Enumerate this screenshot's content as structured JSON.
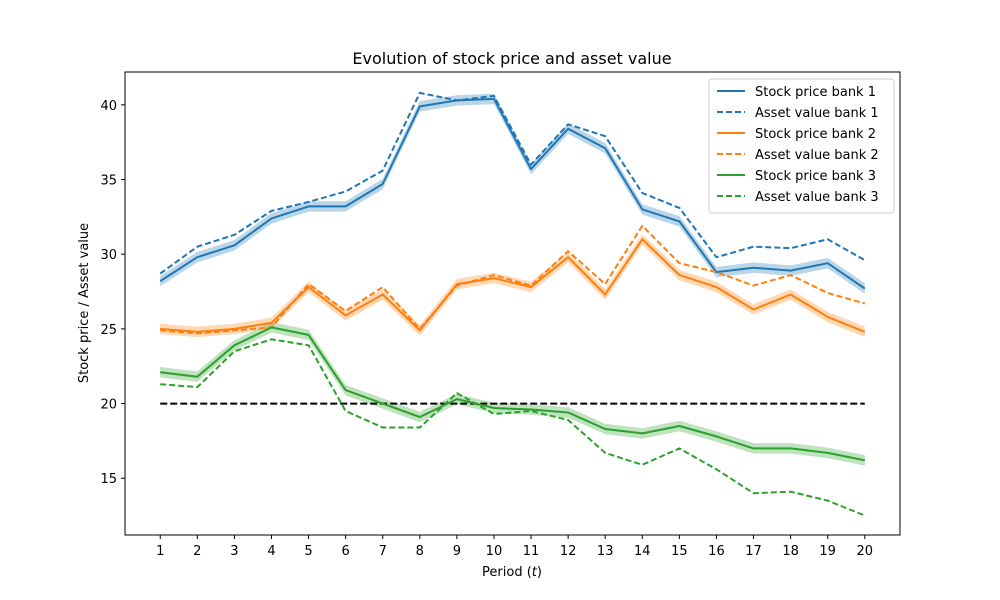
{
  "chart_data": {
    "type": "line",
    "title": "Evolution of stock price and asset value",
    "xlabel": "Period (t)",
    "xlabel_parts": {
      "prefix": "Period (",
      "var": "t",
      "suffix": ")"
    },
    "ylabel": "Stock price / Asset value",
    "x": [
      1,
      2,
      3,
      4,
      5,
      6,
      7,
      8,
      9,
      10,
      11,
      12,
      13,
      14,
      15,
      16,
      17,
      18,
      19,
      20
    ],
    "xlim": [
      0.05,
      20.95
    ],
    "ylim": [
      11.2,
      42.2
    ],
    "yticks": [
      15,
      20,
      25,
      30,
      35,
      40
    ],
    "legend_position": "top-right",
    "reference_line": {
      "y": 20,
      "x_range": [
        1,
        20
      ],
      "color": "#000000",
      "style": "dashed"
    },
    "series": [
      {
        "name": "Stock price bank 1",
        "color": "#1f77b4",
        "style": "solid",
        "band": true,
        "values": [
          28.2,
          29.8,
          30.6,
          32.4,
          33.2,
          33.2,
          34.7,
          39.9,
          40.3,
          40.4,
          35.7,
          38.4,
          37.1,
          33.0,
          32.2,
          28.8,
          29.1,
          28.9,
          29.4,
          27.7
        ]
      },
      {
        "name": "Asset value bank 1",
        "color": "#1f77b4",
        "style": "dashed",
        "band": false,
        "values": [
          28.7,
          30.5,
          31.3,
          32.9,
          33.5,
          34.2,
          35.6,
          40.8,
          40.3,
          40.6,
          36.0,
          38.7,
          37.9,
          34.1,
          33.1,
          29.8,
          30.5,
          30.4,
          31.0,
          29.6
        ]
      },
      {
        "name": "Stock price bank 2",
        "color": "#ff7f0e",
        "style": "solid",
        "band": true,
        "values": [
          25.0,
          24.8,
          25.0,
          25.4,
          27.8,
          25.9,
          27.3,
          24.9,
          28.0,
          28.4,
          27.8,
          29.8,
          27.3,
          31.0,
          28.6,
          27.8,
          26.3,
          27.3,
          25.8,
          24.8
        ]
      },
      {
        "name": "Asset value bank 2",
        "color": "#ff7f0e",
        "style": "dashed",
        "band": false,
        "values": [
          24.9,
          24.7,
          24.9,
          25.1,
          28.0,
          26.2,
          27.8,
          25.0,
          27.9,
          28.6,
          27.9,
          30.2,
          28.0,
          31.9,
          29.4,
          28.8,
          27.9,
          28.6,
          27.4,
          26.7
        ]
      },
      {
        "name": "Stock price bank 3",
        "color": "#2ca02c",
        "style": "solid",
        "band": true,
        "values": [
          22.1,
          21.8,
          23.9,
          25.1,
          24.6,
          20.9,
          20.0,
          19.1,
          20.3,
          19.7,
          19.6,
          19.4,
          18.3,
          18.0,
          18.5,
          17.8,
          17.0,
          17.0,
          16.7,
          16.2
        ]
      },
      {
        "name": "Asset value bank 3",
        "color": "#2ca02c",
        "style": "dashed",
        "band": false,
        "values": [
          21.3,
          21.1,
          23.5,
          24.3,
          23.9,
          19.5,
          18.4,
          18.4,
          20.7,
          19.3,
          19.5,
          18.9,
          16.7,
          15.9,
          17.0,
          15.6,
          14.0,
          14.1,
          13.5,
          12.5
        ]
      }
    ]
  }
}
